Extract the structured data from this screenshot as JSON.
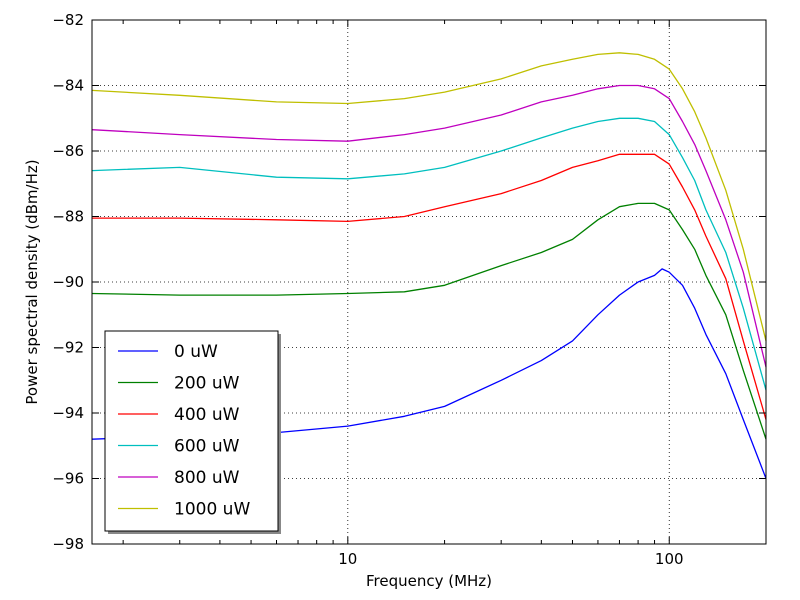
{
  "chart_data": {
    "type": "line",
    "xlabel": "Frequency (MHz)",
    "ylabel": "Power spectral density (dBm/Hz)",
    "xscale": "log",
    "xlim": [
      1.6,
      200
    ],
    "ylim": [
      -98,
      -82
    ],
    "xticks": [
      10,
      100
    ],
    "xtick_labels": [
      "10",
      "100"
    ],
    "yticks": [
      -98,
      -96,
      -94,
      -92,
      -90,
      -88,
      -86,
      -84,
      -82
    ],
    "ytick_labels": [
      "−98",
      "−96",
      "−94",
      "−92",
      "−90",
      "−88",
      "−86",
      "−84",
      "−82"
    ],
    "grid": true,
    "legend_position": "lower-left",
    "series": [
      {
        "name": "0 uW",
        "color": "#0000ff",
        "x": [
          1.6,
          3,
          6,
          10,
          15,
          20,
          30,
          40,
          50,
          60,
          70,
          80,
          90,
          95,
          100,
          110,
          120,
          130,
          150,
          170,
          200
        ],
        "y": [
          -94.8,
          -94.7,
          -94.6,
          -94.4,
          -94.1,
          -93.8,
          -93.0,
          -92.4,
          -91.8,
          -91.0,
          -90.4,
          -90.0,
          -89.8,
          -89.6,
          -89.7,
          -90.1,
          -90.8,
          -91.6,
          -92.8,
          -94.2,
          -96.0
        ]
      },
      {
        "name": "200 uW",
        "color": "#008000",
        "x": [
          1.6,
          3,
          6,
          10,
          15,
          20,
          30,
          40,
          50,
          60,
          70,
          80,
          90,
          100,
          110,
          120,
          130,
          150,
          170,
          200
        ],
        "y": [
          -90.35,
          -90.4,
          -90.4,
          -90.35,
          -90.3,
          -90.1,
          -89.5,
          -89.1,
          -88.7,
          -88.1,
          -87.7,
          -87.6,
          -87.6,
          -87.8,
          -88.4,
          -89.0,
          -89.8,
          -91.0,
          -92.7,
          -94.8
        ]
      },
      {
        "name": "400 uW",
        "color": "#ff0000",
        "x": [
          1.6,
          3,
          6,
          10,
          15,
          20,
          30,
          40,
          50,
          60,
          70,
          80,
          90,
          100,
          110,
          120,
          130,
          150,
          170,
          200
        ],
        "y": [
          -88.05,
          -88.05,
          -88.1,
          -88.15,
          -88.0,
          -87.7,
          -87.3,
          -86.9,
          -86.5,
          -86.3,
          -86.1,
          -86.1,
          -86.1,
          -86.4,
          -87.1,
          -87.8,
          -88.6,
          -89.9,
          -91.8,
          -94.2
        ]
      },
      {
        "name": "600 uW",
        "color": "#00bfbf",
        "x": [
          1.6,
          3,
          6,
          10,
          15,
          20,
          30,
          40,
          50,
          60,
          70,
          80,
          90,
          100,
          110,
          120,
          130,
          150,
          170,
          200
        ],
        "y": [
          -86.6,
          -86.5,
          -86.8,
          -86.85,
          -86.7,
          -86.5,
          -86.0,
          -85.6,
          -85.3,
          -85.1,
          -85.0,
          -85.0,
          -85.1,
          -85.5,
          -86.2,
          -86.9,
          -87.8,
          -89.1,
          -90.8,
          -93.3
        ]
      },
      {
        "name": "800 uW",
        "color": "#bf00bf",
        "x": [
          1.6,
          3,
          6,
          10,
          15,
          20,
          30,
          40,
          50,
          60,
          70,
          80,
          90,
          100,
          110,
          120,
          130,
          150,
          170,
          200
        ],
        "y": [
          -85.35,
          -85.5,
          -85.65,
          -85.7,
          -85.5,
          -85.3,
          -84.9,
          -84.5,
          -84.3,
          -84.1,
          -84.0,
          -84.0,
          -84.1,
          -84.4,
          -85.1,
          -85.8,
          -86.6,
          -88.1,
          -89.7,
          -92.6
        ]
      },
      {
        "name": "1000 uW",
        "color": "#bfbf00",
        "x": [
          1.6,
          3,
          6,
          10,
          15,
          20,
          30,
          40,
          50,
          60,
          70,
          80,
          90,
          100,
          110,
          120,
          130,
          150,
          170,
          200
        ],
        "y": [
          -84.15,
          -84.3,
          -84.5,
          -84.55,
          -84.4,
          -84.2,
          -83.8,
          -83.4,
          -83.2,
          -83.05,
          -83.0,
          -83.05,
          -83.2,
          -83.5,
          -84.1,
          -84.8,
          -85.6,
          -87.2,
          -89.0,
          -91.8
        ]
      }
    ]
  }
}
